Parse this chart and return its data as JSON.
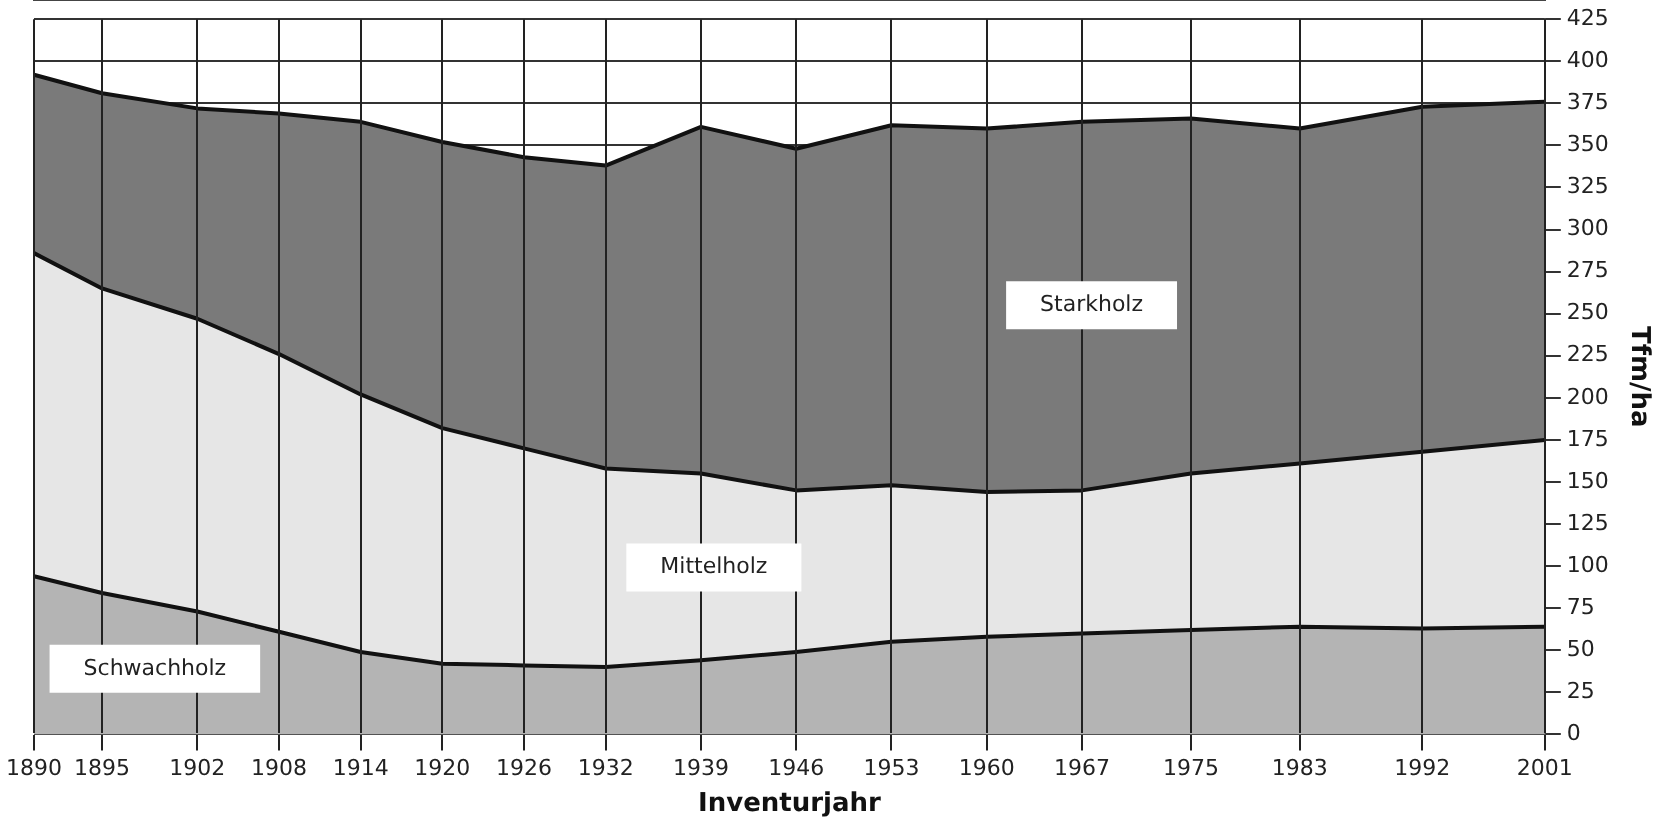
{
  "chart_data": {
    "type": "area",
    "stacked": true,
    "xlabel": "Inventurjahr",
    "ylabel": "Tfm/ha",
    "x": [
      1890,
      1895,
      1902,
      1908,
      1914,
      1920,
      1926,
      1932,
      1939,
      1946,
      1953,
      1960,
      1967,
      1975,
      1983,
      1992,
      2001
    ],
    "xlim": [
      1890,
      2001
    ],
    "xticks": [
      1890,
      1895,
      1902,
      1908,
      1914,
      1920,
      1926,
      1932,
      1939,
      1946,
      1953,
      1960,
      1967,
      1975,
      1983,
      1992,
      2001
    ],
    "ylim": [
      0,
      425
    ],
    "yticks": [
      0,
      25,
      50,
      75,
      100,
      125,
      150,
      175,
      200,
      225,
      250,
      275,
      300,
      325,
      350,
      375,
      400,
      425
    ],
    "grid": true,
    "legend": false,
    "series": [
      {
        "name": "Schwachholz",
        "color": "#b4b4b4",
        "values": [
          94,
          84,
          73,
          61,
          49,
          42,
          41,
          40,
          44,
          49,
          55,
          58,
          60,
          62,
          64,
          63,
          64
        ]
      },
      {
        "name": "Mittelholz",
        "color": "#e6e6e6",
        "values": [
          192,
          181,
          174,
          165,
          153,
          140,
          129,
          118,
          111,
          96,
          93,
          86,
          85,
          93,
          97,
          105,
          111
        ]
      },
      {
        "name": "Starkholz",
        "color": "#7a7a7a",
        "values": [
          106,
          116,
          125,
          143,
          162,
          170,
          173,
          180,
          206,
          203,
          214,
          216,
          219,
          211,
          199,
          205,
          201
        ]
      }
    ]
  }
}
